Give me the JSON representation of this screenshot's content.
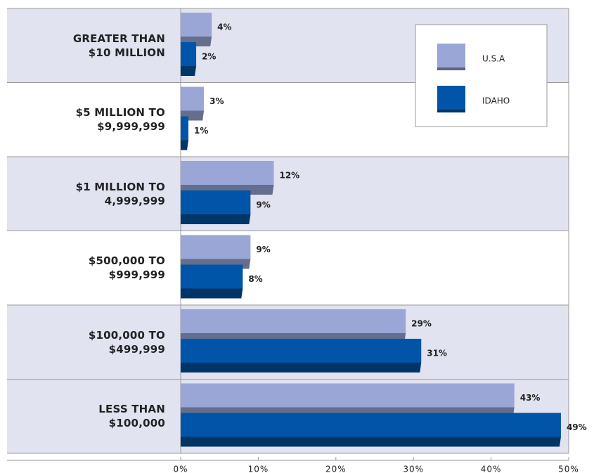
{
  "chart_data": {
    "type": "bar",
    "orientation": "horizontal",
    "categories": [
      "GREATER THAN\n$10 MILLION",
      "$5 MILLION TO\n$9,999,999",
      "$1 MILLION TO\n4,999,999",
      "$500,000 TO\n$999,999",
      "$100,000 TO\n$499,999",
      "LESS THAN\n$100,000"
    ],
    "series": [
      {
        "name": "U.S.A",
        "color": "#99a6d6",
        "values": [
          4,
          3,
          12,
          9,
          29,
          43
        ],
        "value_labels": [
          "4%",
          "3%",
          "12%",
          "9%",
          "29%",
          "43%"
        ]
      },
      {
        "name": "IDAHO",
        "color": "#0055a8",
        "values": [
          2,
          1,
          9,
          8,
          31,
          49
        ],
        "value_labels": [
          "2%",
          "1%",
          "9%",
          "8%",
          "31%",
          "49%"
        ]
      }
    ],
    "xlim": [
      0,
      50
    ],
    "xticks": [
      {
        "value": 0,
        "label": "0%"
      },
      {
        "value": 10,
        "label": "10%"
      },
      {
        "value": 20,
        "label": "20%"
      },
      {
        "value": 30,
        "label": "30%"
      },
      {
        "value": 40,
        "label": "40%"
      },
      {
        "value": 50,
        "label": "50%"
      }
    ],
    "legend": "top-right"
  }
}
